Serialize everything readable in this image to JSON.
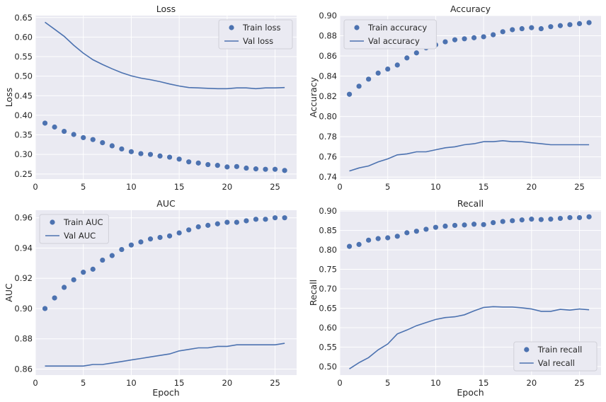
{
  "figure": {
    "colors": {
      "train": "#4c72b0",
      "val": "#4c72b0",
      "background": "#eaeaf2",
      "grid": "#ffffff"
    }
  },
  "chart_data": [
    {
      "type": "line",
      "title": "Loss",
      "xlabel": "",
      "ylabel": "Loss",
      "xlim": [
        0,
        27.25
      ],
      "ylim": [
        0.237,
        0.655
      ],
      "xticks": [
        0,
        5,
        10,
        15,
        20,
        25
      ],
      "xtick_labels": [
        "0",
        "5",
        "10",
        "15",
        "20",
        "25"
      ],
      "yticks": [
        0.25,
        0.3,
        0.35,
        0.4,
        0.45,
        0.5,
        0.55,
        0.6,
        0.65
      ],
      "ytick_labels": [
        "0.25",
        "0.30",
        "0.35",
        "0.40",
        "0.45",
        "0.50",
        "0.55",
        "0.60",
        "0.65"
      ],
      "legend_position": "upper-right",
      "x": [
        1,
        2,
        3,
        4,
        5,
        6,
        7,
        8,
        9,
        10,
        11,
        12,
        13,
        14,
        15,
        16,
        17,
        18,
        19,
        20,
        21,
        22,
        23,
        24,
        25,
        26
      ],
      "series": [
        {
          "name": "Train loss",
          "kind": "markers",
          "values": [
            0.38,
            0.37,
            0.359,
            0.351,
            0.343,
            0.338,
            0.33,
            0.322,
            0.314,
            0.307,
            0.302,
            0.3,
            0.296,
            0.293,
            0.288,
            0.281,
            0.278,
            0.274,
            0.272,
            0.268,
            0.269,
            0.265,
            0.263,
            0.262,
            0.262,
            0.259
          ]
        },
        {
          "name": "Val loss",
          "kind": "line",
          "values": [
            0.638,
            0.62,
            0.602,
            0.579,
            0.559,
            0.542,
            0.53,
            0.519,
            0.509,
            0.501,
            0.495,
            0.491,
            0.486,
            0.48,
            0.475,
            0.471,
            0.47,
            0.469,
            0.468,
            0.468,
            0.47,
            0.47,
            0.468,
            0.47,
            0.47,
            0.471
          ]
        }
      ]
    },
    {
      "type": "line",
      "title": "Accuracy",
      "xlabel": "",
      "ylabel": "Accuracy",
      "xlim": [
        0,
        27.25
      ],
      "ylim": [
        0.738,
        0.9
      ],
      "xticks": [
        0,
        5,
        10,
        15,
        20,
        25
      ],
      "xtick_labels": [
        "0",
        "5",
        "10",
        "15",
        "20",
        "25"
      ],
      "yticks": [
        0.74,
        0.76,
        0.78,
        0.8,
        0.82,
        0.84,
        0.86,
        0.88,
        0.9
      ],
      "ytick_labels": [
        "0.74",
        "0.76",
        "0.78",
        "0.80",
        "0.82",
        "0.84",
        "0.86",
        "0.88",
        "0.90"
      ],
      "legend_position": "upper-left",
      "x": [
        1,
        2,
        3,
        4,
        5,
        6,
        7,
        8,
        9,
        10,
        11,
        12,
        13,
        14,
        15,
        16,
        17,
        18,
        19,
        20,
        21,
        22,
        23,
        24,
        25,
        26
      ],
      "series": [
        {
          "name": "Train accuracy",
          "kind": "markers",
          "values": [
            0.822,
            0.83,
            0.837,
            0.843,
            0.847,
            0.851,
            0.858,
            0.863,
            0.868,
            0.871,
            0.874,
            0.876,
            0.877,
            0.878,
            0.879,
            0.881,
            0.884,
            0.886,
            0.887,
            0.888,
            0.887,
            0.889,
            0.89,
            0.891,
            0.892,
            0.893
          ]
        },
        {
          "name": "Val accuracy",
          "kind": "line",
          "values": [
            0.746,
            0.749,
            0.751,
            0.755,
            0.758,
            0.762,
            0.763,
            0.765,
            0.765,
            0.767,
            0.769,
            0.77,
            0.772,
            0.773,
            0.775,
            0.775,
            0.776,
            0.775,
            0.775,
            0.774,
            0.773,
            0.772,
            0.772,
            0.772,
            0.772,
            0.772
          ]
        }
      ]
    },
    {
      "type": "line",
      "title": "AUC",
      "xlabel": "Epoch",
      "ylabel": "AUC",
      "xlim": [
        0,
        27.25
      ],
      "ylim": [
        0.856,
        0.965
      ],
      "xticks": [
        0,
        5,
        10,
        15,
        20,
        25
      ],
      "xtick_labels": [
        "0",
        "5",
        "10",
        "15",
        "20",
        "25"
      ],
      "yticks": [
        0.86,
        0.88,
        0.9,
        0.92,
        0.94,
        0.96
      ],
      "ytick_labels": [
        "0.86",
        "0.88",
        "0.90",
        "0.92",
        "0.94",
        "0.96"
      ],
      "legend_position": "upper-left",
      "x": [
        1,
        2,
        3,
        4,
        5,
        6,
        7,
        8,
        9,
        10,
        11,
        12,
        13,
        14,
        15,
        16,
        17,
        18,
        19,
        20,
        21,
        22,
        23,
        24,
        25,
        26
      ],
      "series": [
        {
          "name": "Train AUC",
          "kind": "markers",
          "values": [
            0.9,
            0.907,
            0.914,
            0.919,
            0.924,
            0.926,
            0.932,
            0.935,
            0.939,
            0.942,
            0.944,
            0.946,
            0.947,
            0.948,
            0.95,
            0.952,
            0.954,
            0.955,
            0.956,
            0.957,
            0.957,
            0.958,
            0.959,
            0.959,
            0.96,
            0.96
          ]
        },
        {
          "name": "Val AUC",
          "kind": "line",
          "values": [
            0.862,
            0.862,
            0.862,
            0.862,
            0.862,
            0.863,
            0.863,
            0.864,
            0.865,
            0.866,
            0.867,
            0.868,
            0.869,
            0.87,
            0.872,
            0.873,
            0.874,
            0.874,
            0.875,
            0.875,
            0.876,
            0.876,
            0.876,
            0.876,
            0.876,
            0.877
          ]
        }
      ]
    },
    {
      "type": "line",
      "title": "Recall",
      "xlabel": "Epoch",
      "ylabel": "Recall",
      "xlim": [
        0,
        27.25
      ],
      "ylim": [
        0.478,
        0.902
      ],
      "xticks": [
        0,
        5,
        10,
        15,
        20,
        25
      ],
      "xtick_labels": [
        "0",
        "5",
        "10",
        "15",
        "20",
        "25"
      ],
      "yticks": [
        0.5,
        0.55,
        0.6,
        0.65,
        0.7,
        0.75,
        0.8,
        0.85,
        0.9
      ],
      "ytick_labels": [
        "0.50",
        "0.55",
        "0.60",
        "0.65",
        "0.70",
        "0.75",
        "0.80",
        "0.85",
        "0.90"
      ],
      "legend_position": "lower-right",
      "x": [
        1,
        2,
        3,
        4,
        5,
        6,
        7,
        8,
        9,
        10,
        11,
        12,
        13,
        14,
        15,
        16,
        17,
        18,
        19,
        20,
        21,
        22,
        23,
        24,
        25,
        26
      ],
      "series": [
        {
          "name": "Train recall",
          "kind": "markers",
          "values": [
            0.809,
            0.814,
            0.825,
            0.829,
            0.831,
            0.835,
            0.844,
            0.848,
            0.853,
            0.858,
            0.861,
            0.863,
            0.864,
            0.866,
            0.865,
            0.87,
            0.873,
            0.875,
            0.877,
            0.879,
            0.878,
            0.879,
            0.881,
            0.883,
            0.883,
            0.885
          ]
        },
        {
          "name": "Val recall",
          "kind": "line",
          "values": [
            0.494,
            0.51,
            0.523,
            0.543,
            0.558,
            0.584,
            0.594,
            0.605,
            0.613,
            0.621,
            0.626,
            0.628,
            0.633,
            0.643,
            0.652,
            0.654,
            0.653,
            0.653,
            0.651,
            0.648,
            0.642,
            0.642,
            0.647,
            0.645,
            0.648,
            0.646
          ]
        }
      ]
    }
  ]
}
